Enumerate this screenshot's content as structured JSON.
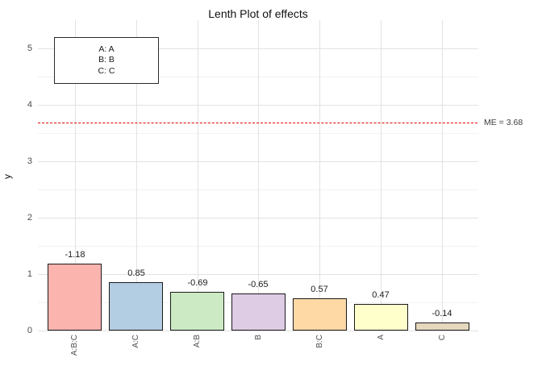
{
  "title": "Lenth Plot of effects",
  "y_axis": {
    "label": "y",
    "major_ticks": [
      0,
      1,
      2,
      3,
      4,
      5
    ],
    "minor_ticks": [
      0.5,
      1.5,
      2.5,
      3.5,
      4.5
    ]
  },
  "reference_line": {
    "label": "ME = 3.68",
    "value": 3.68,
    "color": "#e00000",
    "style": "dashed"
  },
  "legend": {
    "items": [
      "A: A",
      "B: B",
      "C: C"
    ]
  },
  "chart_data": {
    "type": "bar",
    "title": "Lenth Plot of effects",
    "categories": [
      "A:B:C",
      "A:C",
      "A:B",
      "B",
      "B:C",
      "A",
      "C"
    ],
    "values": [
      -1.18,
      0.85,
      -0.69,
      -0.65,
      0.57,
      0.47,
      -0.14
    ],
    "bar_heights_abs": [
      1.18,
      0.85,
      0.69,
      0.65,
      0.57,
      0.47,
      0.14
    ],
    "data_labels": [
      "-1.18",
      "0.85",
      "-0.69",
      "-0.65",
      "0.57",
      "0.47",
      "-0.14"
    ],
    "bar_colors": [
      "#FBB4AE",
      "#B3CDE3",
      "#CCEBC5",
      "#DECBE4",
      "#FED9A6",
      "#FFFFCC",
      "#E5D8BD"
    ],
    "bar_border_color": "#1a1a1a",
    "xlabel": "",
    "ylabel": "y",
    "ylim": [
      0,
      5.5
    ],
    "grid": true,
    "gridline_major_color": "#e2e2e2",
    "gridline_minor_color": "#f2f2f2",
    "legend_entries": [
      "A: A",
      "B: B",
      "C: C"
    ],
    "reference_line": {
      "label": "ME = 3.68",
      "y": 3.68
    },
    "legend_position": "top-left"
  }
}
